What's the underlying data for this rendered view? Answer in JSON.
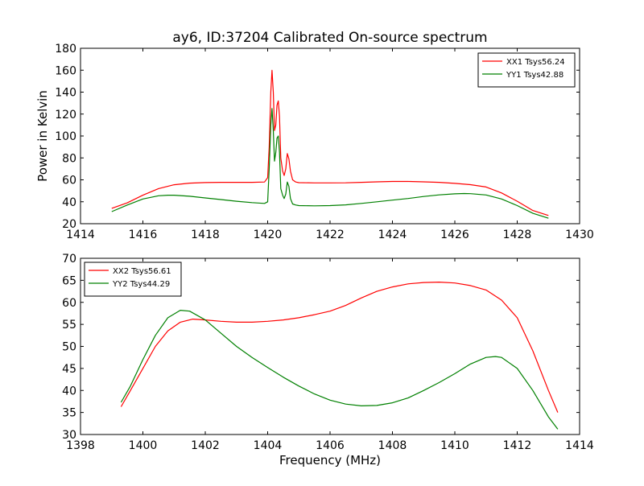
{
  "figure": {
    "title": "ay6, ID:37204 Calibrated On-source spectrum",
    "xlabel": "Frequency (MHz)"
  },
  "chart_data": [
    {
      "type": "line",
      "title": "ay6, ID:37204 Calibrated On-source spectrum",
      "xlabel": "",
      "ylabel": "Power in Kelvin",
      "xlim": [
        1414,
        1430
      ],
      "ylim": [
        20,
        180
      ],
      "xticks": [
        1414,
        1416,
        1418,
        1420,
        1422,
        1424,
        1426,
        1428,
        1430
      ],
      "yticks": [
        20,
        40,
        60,
        80,
        100,
        120,
        140,
        160,
        180
      ],
      "grid": false,
      "legend": "top-right",
      "series": [
        {
          "name": "XX1 Tsys56.24",
          "color": "#ff0000",
          "points": [
            [
              1415.0,
              34
            ],
            [
              1415.5,
              39
            ],
            [
              1416.0,
              46
            ],
            [
              1416.5,
              52
            ],
            [
              1417.0,
              55.5
            ],
            [
              1417.5,
              57
            ],
            [
              1418.0,
              57.5
            ],
            [
              1418.5,
              57.7
            ],
            [
              1419.0,
              57.7
            ],
            [
              1419.5,
              57.7
            ],
            [
              1419.9,
              58
            ],
            [
              1420.0,
              62
            ],
            [
              1420.05,
              90
            ],
            [
              1420.1,
              140
            ],
            [
              1420.14,
              160
            ],
            [
              1420.18,
              140
            ],
            [
              1420.22,
              105
            ],
            [
              1420.26,
              110
            ],
            [
              1420.3,
              128
            ],
            [
              1420.34,
              132
            ],
            [
              1420.38,
              118
            ],
            [
              1420.42,
              80
            ],
            [
              1420.48,
              68
            ],
            [
              1420.53,
              64
            ],
            [
              1420.58,
              70
            ],
            [
              1420.63,
              84
            ],
            [
              1420.68,
              79
            ],
            [
              1420.73,
              68
            ],
            [
              1420.8,
              60
            ],
            [
              1420.9,
              58
            ],
            [
              1421.0,
              57.4
            ],
            [
              1421.5,
              57.2
            ],
            [
              1422.0,
              57.2
            ],
            [
              1422.5,
              57.3
            ],
            [
              1423.0,
              57.7
            ],
            [
              1423.5,
              58.2
            ],
            [
              1424.0,
              58.5
            ],
            [
              1424.5,
              58.5
            ],
            [
              1425.0,
              58.2
            ],
            [
              1425.5,
              57.7
            ],
            [
              1426.0,
              56.8
            ],
            [
              1426.5,
              55.6
            ],
            [
              1427.0,
              53.5
            ],
            [
              1427.5,
              48
            ],
            [
              1428.0,
              40.5
            ],
            [
              1428.5,
              32
            ],
            [
              1429.0,
              27.5
            ]
          ]
        },
        {
          "name": "YY1 Tsys42.88",
          "color": "#008000",
          "points": [
            [
              1415.0,
              31
            ],
            [
              1415.5,
              37
            ],
            [
              1416.0,
              42.5
            ],
            [
              1416.5,
              45.5
            ],
            [
              1416.8,
              46
            ],
            [
              1417.0,
              46
            ],
            [
              1417.5,
              45
            ],
            [
              1418.0,
              43.5
            ],
            [
              1418.5,
              42
            ],
            [
              1419.0,
              40.5
            ],
            [
              1419.5,
              39.2
            ],
            [
              1419.9,
              38.5
            ],
            [
              1420.0,
              40
            ],
            [
              1420.05,
              70
            ],
            [
              1420.1,
              110
            ],
            [
              1420.14,
              125
            ],
            [
              1420.18,
              105
            ],
            [
              1420.22,
              77
            ],
            [
              1420.26,
              85
            ],
            [
              1420.3,
              98
            ],
            [
              1420.34,
              100
            ],
            [
              1420.38,
              85
            ],
            [
              1420.42,
              52
            ],
            [
              1420.48,
              46
            ],
            [
              1420.53,
              43
            ],
            [
              1420.58,
              47
            ],
            [
              1420.63,
              58
            ],
            [
              1420.68,
              54
            ],
            [
              1420.73,
              43
            ],
            [
              1420.8,
              38
            ],
            [
              1420.9,
              37
            ],
            [
              1421.0,
              36.5
            ],
            [
              1421.5,
              36.3
            ],
            [
              1422.0,
              36.5
            ],
            [
              1422.5,
              37.2
            ],
            [
              1423.0,
              38.5
            ],
            [
              1423.5,
              40
            ],
            [
              1424.0,
              41.5
            ],
            [
              1424.5,
              43
            ],
            [
              1425.0,
              44.8
            ],
            [
              1425.5,
              46.3
            ],
            [
              1426.0,
              47.2
            ],
            [
              1426.3,
              47.5
            ],
            [
              1426.5,
              47.4
            ],
            [
              1427.0,
              46.2
            ],
            [
              1427.5,
              42.5
            ],
            [
              1428.0,
              36.5
            ],
            [
              1428.5,
              29.5
            ],
            [
              1429.0,
              25
            ]
          ]
        }
      ]
    },
    {
      "type": "line",
      "title": "",
      "xlabel": "Frequency (MHz)",
      "ylabel": "",
      "xlim": [
        1398,
        1414
      ],
      "ylim": [
        30,
        70
      ],
      "xticks": [
        1398,
        1400,
        1402,
        1404,
        1406,
        1408,
        1410,
        1412,
        1414
      ],
      "yticks": [
        30,
        35,
        40,
        45,
        50,
        55,
        60,
        65,
        70
      ],
      "grid": false,
      "legend": "top-left",
      "series": [
        {
          "name": "XX2 Tsys56.61",
          "color": "#ff0000",
          "points": [
            [
              1399.3,
              36.3
            ],
            [
              1399.6,
              40
            ],
            [
              1400.0,
              45
            ],
            [
              1400.4,
              50
            ],
            [
              1400.8,
              53.5
            ],
            [
              1401.2,
              55.5
            ],
            [
              1401.6,
              56.2
            ],
            [
              1402.0,
              56
            ],
            [
              1402.5,
              55.7
            ],
            [
              1403.0,
              55.5
            ],
            [
              1403.5,
              55.5
            ],
            [
              1404.0,
              55.7
            ],
            [
              1404.5,
              56
            ],
            [
              1405.0,
              56.5
            ],
            [
              1405.5,
              57.2
            ],
            [
              1406.0,
              58
            ],
            [
              1406.5,
              59.3
            ],
            [
              1407.0,
              61
            ],
            [
              1407.5,
              62.5
            ],
            [
              1408.0,
              63.5
            ],
            [
              1408.5,
              64.2
            ],
            [
              1409.0,
              64.5
            ],
            [
              1409.5,
              64.6
            ],
            [
              1410.0,
              64.4
            ],
            [
              1410.5,
              63.8
            ],
            [
              1411.0,
              62.8
            ],
            [
              1411.5,
              60.5
            ],
            [
              1412.0,
              56.5
            ],
            [
              1412.5,
              49
            ],
            [
              1413.0,
              40
            ],
            [
              1413.3,
              35
            ]
          ]
        },
        {
          "name": "YY2 Tsys44.29",
          "color": "#008000",
          "points": [
            [
              1399.3,
              37.3
            ],
            [
              1399.6,
              41
            ],
            [
              1400.0,
              47
            ],
            [
              1400.4,
              52.5
            ],
            [
              1400.8,
              56.5
            ],
            [
              1401.2,
              58.2
            ],
            [
              1401.5,
              58
            ],
            [
              1402.0,
              56
            ],
            [
              1402.5,
              53
            ],
            [
              1403.0,
              50
            ],
            [
              1403.5,
              47.5
            ],
            [
              1404.0,
              45.2
            ],
            [
              1404.5,
              43
            ],
            [
              1405.0,
              41
            ],
            [
              1405.5,
              39.2
            ],
            [
              1406.0,
              37.8
            ],
            [
              1406.5,
              36.9
            ],
            [
              1407.0,
              36.5
            ],
            [
              1407.5,
              36.6
            ],
            [
              1408.0,
              37.2
            ],
            [
              1408.5,
              38.3
            ],
            [
              1409.0,
              40
            ],
            [
              1409.5,
              41.8
            ],
            [
              1410.0,
              43.8
            ],
            [
              1410.5,
              46
            ],
            [
              1411.0,
              47.5
            ],
            [
              1411.3,
              47.7
            ],
            [
              1411.5,
              47.5
            ],
            [
              1412.0,
              45
            ],
            [
              1412.5,
              40
            ],
            [
              1413.0,
              34
            ],
            [
              1413.3,
              31.2
            ]
          ]
        }
      ]
    }
  ]
}
